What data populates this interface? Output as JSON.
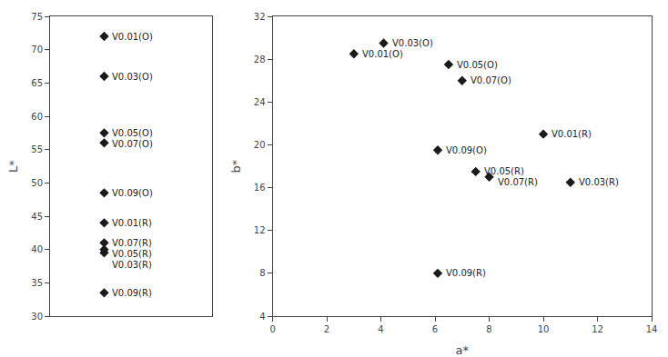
{
  "chart_data": [
    {
      "type": "scatter",
      "x": [
        1,
        1,
        1,
        1,
        1,
        1,
        1,
        1,
        1,
        1
      ],
      "values": [
        72,
        66,
        57.5,
        56,
        48.5,
        44,
        41,
        40,
        39.5,
        33.5
      ],
      "labels": [
        "V0.01(O)",
        "V0.03(O)",
        "V0.05(O)",
        "V0.07(O)",
        "V0.09(O)",
        "V0.01(R)",
        "V0.07(R)",
        "V0.05(R)",
        "V0.03(R)",
        "V0.09(R)"
      ],
      "ylabel": "L*",
      "xlim": [
        0,
        3
      ],
      "ylim": [
        30,
        75
      ],
      "yticks": [
        30,
        35,
        40,
        45,
        50,
        55,
        60,
        65,
        70,
        75
      ],
      "tick_labels": "y",
      "marker": "diamond",
      "color": "#1a1a1a",
      "grid": false
    },
    {
      "type": "scatter",
      "x": [
        3.0,
        4.1,
        6.5,
        7.0,
        6.1,
        10.0,
        7.5,
        8.0,
        11.0,
        6.1
      ],
      "values": [
        28.5,
        29.5,
        27.5,
        26.0,
        19.5,
        21.0,
        17.5,
        17.0,
        16.5,
        8.0
      ],
      "labels": [
        "V0.01(O)",
        "V0.03(O)",
        "V0.05(O)",
        "V0.07(O)",
        "V0.09(O)",
        "V0.01(R)",
        "V0.05(R)",
        "V0.07(R)",
        "V0.03(R)",
        "V0.09(R)"
      ],
      "xlabel": "a*",
      "ylabel": "b*",
      "xlim": [
        0,
        14
      ],
      "ylim": [
        4,
        32
      ],
      "xticks": [
        0,
        2,
        4,
        6,
        8,
        10,
        12,
        14
      ],
      "yticks": [
        4,
        8,
        12,
        16,
        20,
        24,
        28,
        32
      ],
      "marker": "diamond",
      "color": "#1a1a1a",
      "grid": false
    }
  ]
}
